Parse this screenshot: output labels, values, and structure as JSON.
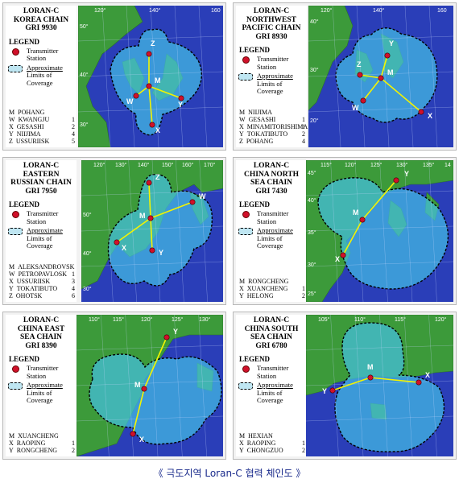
{
  "caption": "《 극도지역 Loran-C 협력 체인도 》",
  "legend": {
    "title": "LEGEND",
    "transmitter": [
      "Transmitter",
      "Station"
    ],
    "coverage": [
      "Approximate",
      "Limits of",
      "Coverage"
    ]
  },
  "colors": {
    "sea": "#2a3eb8",
    "land": "#3c9a3a",
    "coverage": "#45c0e6",
    "station": "#d0102a",
    "line": "#f4f400"
  },
  "panels": [
    {
      "title": [
        "LORAN-C",
        "KOREA CHAIN",
        "GRI 9930"
      ],
      "lon_labels": [
        "120°",
        "140°",
        "160"
      ],
      "lat_labels": [
        "50°",
        "40°",
        "30°"
      ],
      "stations": [
        {
          "code": "M",
          "name": "POHANG",
          "num": ""
        },
        {
          "code": "W",
          "name": "KWANGJU",
          "num": "1"
        },
        {
          "code": "X",
          "name": "GESASHI",
          "num": "2"
        },
        {
          "code": "Y",
          "name": "NIIJIMA",
          "num": "4"
        },
        {
          "code": "Z",
          "name": "USSURIISK",
          "num": "5"
        }
      ]
    },
    {
      "title": [
        "LORAN-C",
        "NORTHWEST",
        "PACIFIC CHAIN",
        "GRI 8930"
      ],
      "lon_labels": [
        "120°",
        "140°",
        "160"
      ],
      "lat_labels": [
        "40°",
        "30°",
        "20°"
      ],
      "stations": [
        {
          "code": "M",
          "name": "NIIJIMA",
          "num": ""
        },
        {
          "code": "W",
          "name": "GESASHI",
          "num": "1"
        },
        {
          "code": "X",
          "name": "MINAMITORISHIMA",
          "num": "1"
        },
        {
          "code": "Y",
          "name": "TOKATIBUTO",
          "num": "2"
        },
        {
          "code": "Z",
          "name": "POHANG",
          "num": "4"
        }
      ]
    },
    {
      "title": [
        "LORAN-C",
        "EASTERN",
        "RUSSIAN CHAIN",
        "GRI 7950"
      ],
      "lon_labels": [
        "120°",
        "130°",
        "140°",
        "150°",
        "160°",
        "170°"
      ],
      "lat_labels": [
        "50°",
        "40°",
        "30°"
      ],
      "stations": [
        {
          "code": "M",
          "name": "ALEKSANDROVSK",
          "num": ""
        },
        {
          "code": "W",
          "name": "PETROPAVLOSK",
          "num": "1"
        },
        {
          "code": "X",
          "name": "USSURIISK",
          "num": "3"
        },
        {
          "code": "Y",
          "name": "TOKATIBUTO",
          "num": "4"
        },
        {
          "code": "Z",
          "name": "OHOTSK",
          "num": "6"
        }
      ]
    },
    {
      "title": [
        "LORAN-C",
        "CHINA NORTH",
        "SEA CHAIN",
        "GRI 7430"
      ],
      "lon_labels": [
        "115°",
        "120°",
        "125°",
        "130°",
        "135°",
        "14"
      ],
      "lat_labels": [
        "45°",
        "40°",
        "35°",
        "30°",
        "25°"
      ],
      "stations": [
        {
          "code": "M",
          "name": "RONGCHENG",
          "num": ""
        },
        {
          "code": "X",
          "name": "XUANCHENG",
          "num": "1"
        },
        {
          "code": "Y",
          "name": "HELONG",
          "num": "2"
        }
      ]
    },
    {
      "title": [
        "LORAN-C",
        "CHINA EAST",
        "SEA CHAIN",
        "GRI 8390"
      ],
      "lon_labels": [
        "110°",
        "115°",
        "120°",
        "125°",
        "130°"
      ],
      "lat_labels": [],
      "stations": [
        {
          "code": "M",
          "name": "XUANCHENG",
          "num": ""
        },
        {
          "code": "X",
          "name": "RAOPING",
          "num": "1"
        },
        {
          "code": "Y",
          "name": "RONGCHENG",
          "num": "2"
        }
      ]
    },
    {
      "title": [
        "LORAN-C",
        "CHINA SOUTH",
        "SEA CHAIN",
        "GRI 6780"
      ],
      "lon_labels": [
        "105°",
        "110°",
        "115°",
        "120°"
      ],
      "lat_labels": [],
      "stations": [
        {
          "code": "M",
          "name": "HEXIAN",
          "num": ""
        },
        {
          "code": "X",
          "name": "RAOPING",
          "num": "1"
        },
        {
          "code": "Y",
          "name": "CHONGZUO",
          "num": "2"
        }
      ]
    }
  ]
}
